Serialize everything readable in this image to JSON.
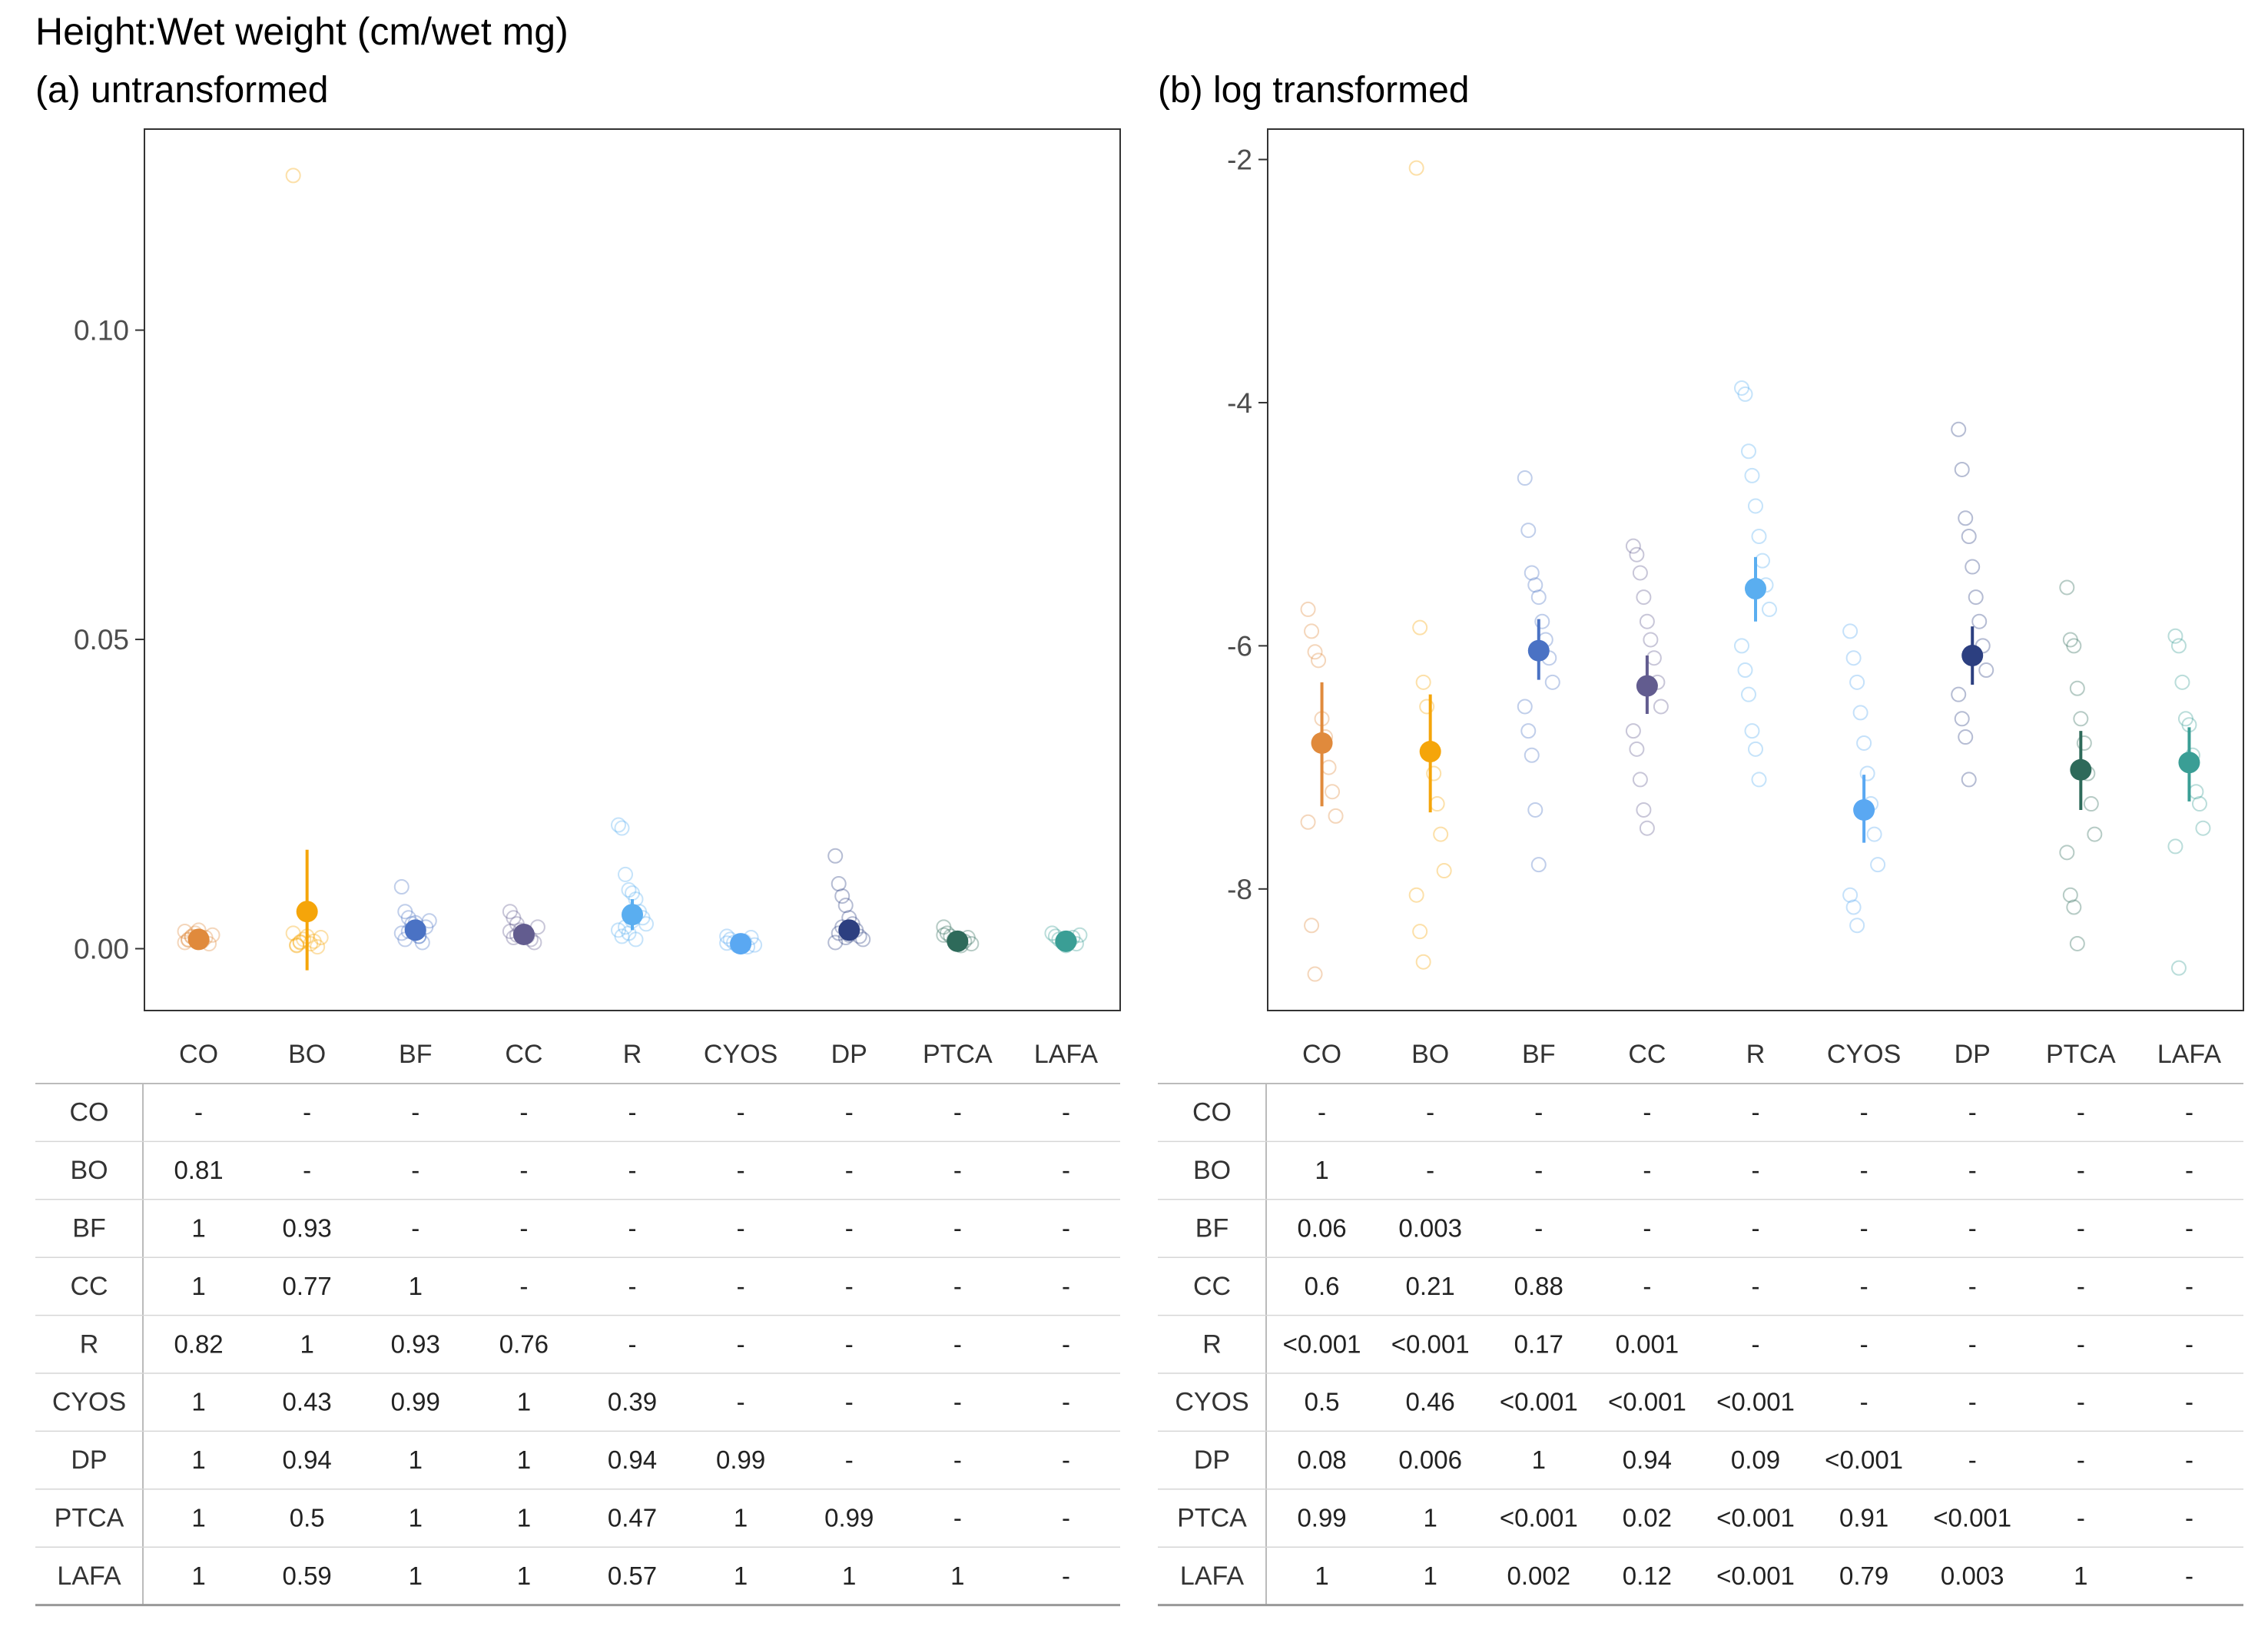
{
  "title": "Height:Wet weight (cm/wet mg)",
  "categories": [
    "CO",
    "BO",
    "BF",
    "CC",
    "R",
    "CYOS",
    "DP",
    "PTCA",
    "LAFA"
  ],
  "colors": {
    "CO": "#e08a3c",
    "BO": "#f5a50a",
    "BF": "#4a72c4",
    "CC": "#625c8f",
    "R": "#5aaef0",
    "CYOS": "#5aa8f2",
    "DP": "#2c3f80",
    "PTCA": "#2e6a5a",
    "LAFA": "#3a9e95"
  },
  "panels": [
    {
      "title": "(a) untransformed",
      "y_ticks": [
        "0.00",
        "0.05",
        "0.10"
      ],
      "chart_data": {
        "type": "scatter",
        "categories": [
          "CO",
          "BO",
          "BF",
          "CC",
          "R",
          "CYOS",
          "DP",
          "PTCA",
          "LAFA"
        ],
        "ylim": [
          -0.01,
          0.1325
        ],
        "means": [
          0.0015,
          0.006,
          0.003,
          0.0023,
          0.0055,
          0.0008,
          0.003,
          0.0012,
          0.0012
        ],
        "error_low": [
          0.0008,
          -0.0035,
          0.0015,
          0.0013,
          0.003,
          0.0003,
          0.0015,
          0.0007,
          0.0007
        ],
        "error_high": [
          0.0025,
          0.016,
          0.0045,
          0.0033,
          0.008,
          0.0013,
          0.0045,
          0.0017,
          0.0017
        ],
        "points": [
          [
            0.001,
            0.0015,
            0.002,
            0.0025,
            0.003,
            0.0012,
            0.0018,
            0.0008,
            0.0022,
            0.0028,
            0.0014,
            0.0019
          ],
          [
            0.125,
            0.0005,
            0.001,
            0.0015,
            0.002,
            0.0008,
            0.0012,
            0.0003,
            0.0018,
            0.0025,
            0.0006,
            0.0011
          ],
          [
            0.01,
            0.006,
            0.005,
            0.004,
            0.003,
            0.002,
            0.001,
            0.0035,
            0.0045,
            0.0025,
            0.0015,
            0.0028,
            0.0032,
            0.0042,
            0.002
          ],
          [
            0.006,
            0.005,
            0.004,
            0.003,
            0.0025,
            0.002,
            0.0015,
            0.001,
            0.0035,
            0.0028,
            0.0018,
            0.0022
          ],
          [
            0.02,
            0.0195,
            0.012,
            0.0095,
            0.009,
            0.008,
            0.006,
            0.005,
            0.004,
            0.003,
            0.002,
            0.0035,
            0.0025,
            0.0045,
            0.0015
          ],
          [
            0.002,
            0.0015,
            0.001,
            0.0005,
            0.0008,
            0.0012,
            0.0003,
            0.0018,
            0.0006,
            0.0009
          ],
          [
            0.015,
            0.0105,
            0.0085,
            0.007,
            0.005,
            0.004,
            0.003,
            0.002,
            0.0015,
            0.001,
            0.0025,
            0.0035,
            0.0018,
            0.0022
          ],
          [
            0.0035,
            0.0025,
            0.002,
            0.0015,
            0.001,
            0.0005,
            0.0012,
            0.0018,
            0.0008,
            0.0022
          ],
          [
            0.0025,
            0.002,
            0.0015,
            0.001,
            0.0005,
            0.0012,
            0.0018,
            0.0008,
            0.0022
          ]
        ]
      },
      "table": [
        [
          "-",
          "-",
          "-",
          "-",
          "-",
          "-",
          "-",
          "-",
          "-"
        ],
        [
          "0.81",
          "-",
          "-",
          "-",
          "-",
          "-",
          "-",
          "-",
          "-"
        ],
        [
          "1",
          "0.93",
          "-",
          "-",
          "-",
          "-",
          "-",
          "-",
          "-"
        ],
        [
          "1",
          "0.77",
          "1",
          "-",
          "-",
          "-",
          "-",
          "-",
          "-"
        ],
        [
          "0.82",
          "1",
          "0.93",
          "0.76",
          "-",
          "-",
          "-",
          "-",
          "-"
        ],
        [
          "1",
          "0.43",
          "0.99",
          "1",
          "0.39",
          "-",
          "-",
          "-",
          "-"
        ],
        [
          "1",
          "0.94",
          "1",
          "1",
          "0.94",
          "0.99",
          "-",
          "-",
          "-"
        ],
        [
          "1",
          "0.5",
          "1",
          "1",
          "0.47",
          "1",
          "0.99",
          "-",
          "-"
        ],
        [
          "1",
          "0.59",
          "1",
          "1",
          "0.57",
          "1",
          "1",
          "1",
          "-"
        ]
      ]
    },
    {
      "title": "(b) log transformed",
      "y_ticks": [
        "-2",
        "-4",
        "-6",
        "-8"
      ],
      "chart_data": {
        "type": "scatter",
        "categories": [
          "CO",
          "BO",
          "BF",
          "CC",
          "R",
          "CYOS",
          "DP",
          "PTCA",
          "LAFA"
        ],
        "ylim": [
          -9.0,
          -1.75
        ],
        "means": [
          -6.8,
          -6.87,
          -6.04,
          -6.33,
          -5.53,
          -7.35,
          -6.08,
          -7.02,
          -6.96
        ],
        "error_low": [
          -7.32,
          -7.37,
          -6.28,
          -6.56,
          -5.8,
          -7.62,
          -6.32,
          -7.35,
          -7.28
        ],
        "error_high": [
          -6.3,
          -6.4,
          -5.78,
          -6.08,
          -5.27,
          -7.06,
          -5.84,
          -6.7,
          -6.67
        ],
        "points": [
          [
            -5.7,
            -5.88,
            -6.05,
            -6.12,
            -6.6,
            -6.75,
            -7.0,
            -7.2,
            -7.4,
            -7.45,
            -8.3,
            -8.7
          ],
          [
            -2.07,
            -5.85,
            -6.3,
            -6.5,
            -6.85,
            -7.05,
            -7.3,
            -7.55,
            -7.85,
            -8.05,
            -8.35,
            -8.6
          ],
          [
            -4.62,
            -5.05,
            -5.4,
            -5.5,
            -5.6,
            -5.8,
            -5.95,
            -6.1,
            -6.3,
            -6.5,
            -6.7,
            -6.9,
            -7.35,
            -7.8
          ],
          [
            -5.18,
            -5.25,
            -5.4,
            -5.6,
            -5.8,
            -5.95,
            -6.1,
            -6.3,
            -6.5,
            -6.7,
            -6.85,
            -7.1,
            -7.35,
            -7.5
          ],
          [
            -3.88,
            -3.93,
            -4.4,
            -4.6,
            -4.85,
            -5.1,
            -5.3,
            -5.5,
            -5.7,
            -6.0,
            -6.2,
            -6.4,
            -6.7,
            -6.85,
            -7.1
          ],
          [
            -5.88,
            -6.1,
            -6.3,
            -6.55,
            -6.8,
            -7.05,
            -7.3,
            -7.55,
            -7.8,
            -8.05,
            -8.15,
            -8.3
          ],
          [
            -4.22,
            -4.55,
            -4.95,
            -5.1,
            -5.35,
            -5.6,
            -5.8,
            -6.0,
            -6.2,
            -6.4,
            -6.6,
            -6.75,
            -7.1
          ],
          [
            -5.52,
            -5.95,
            -6.0,
            -6.35,
            -6.6,
            -6.8,
            -7.05,
            -7.3,
            -7.55,
            -7.7,
            -8.05,
            -8.15,
            -8.45
          ],
          [
            -5.92,
            -6.0,
            -6.3,
            -6.6,
            -6.65,
            -6.9,
            -7.2,
            -7.3,
            -7.5,
            -7.65,
            -8.65
          ]
        ]
      },
      "table": [
        [
          "-",
          "-",
          "-",
          "-",
          "-",
          "-",
          "-",
          "-",
          "-"
        ],
        [
          "1",
          "-",
          "-",
          "-",
          "-",
          "-",
          "-",
          "-",
          "-"
        ],
        [
          "0.06",
          "0.003",
          "-",
          "-",
          "-",
          "-",
          "-",
          "-",
          "-"
        ],
        [
          "0.6",
          "0.21",
          "0.88",
          "-",
          "-",
          "-",
          "-",
          "-",
          "-"
        ],
        [
          "<0.001",
          "<0.001",
          "0.17",
          "0.001",
          "-",
          "-",
          "-",
          "-",
          "-"
        ],
        [
          "0.5",
          "0.46",
          "<0.001",
          "<0.001",
          "<0.001",
          "-",
          "-",
          "-",
          "-"
        ],
        [
          "0.08",
          "0.006",
          "1",
          "0.94",
          "0.09",
          "<0.001",
          "-",
          "-",
          "-"
        ],
        [
          "0.99",
          "1",
          "<0.001",
          "0.02",
          "<0.001",
          "0.91",
          "<0.001",
          "-",
          "-"
        ],
        [
          "1",
          "1",
          "0.002",
          "0.12",
          "<0.001",
          "0.79",
          "0.003",
          "1",
          "-"
        ]
      ]
    }
  ]
}
